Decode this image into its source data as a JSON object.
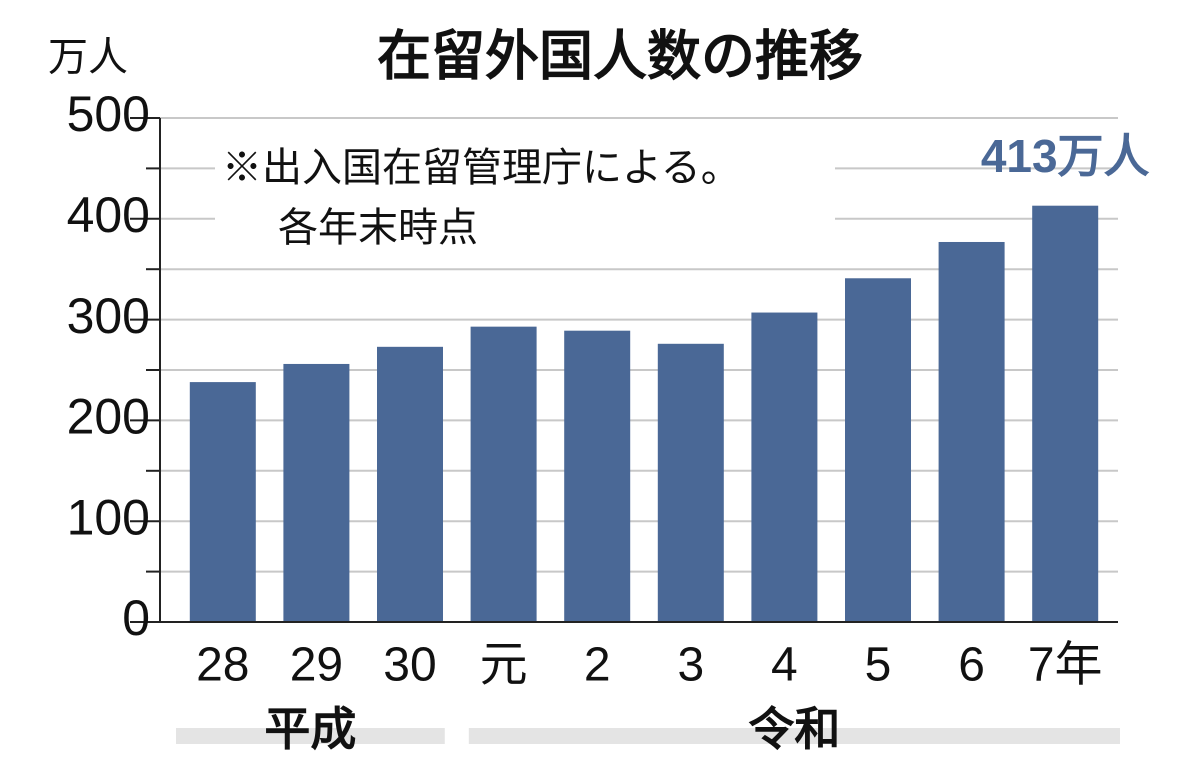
{
  "chart_data": {
    "type": "bar",
    "title": "在留外国人数の推移",
    "y_label": "万人",
    "annotation": [
      "※出入国在留管理庁による。",
      "各年末時点"
    ],
    "categories": [
      "28",
      "29",
      "30",
      "元",
      "2",
      "3",
      "4",
      "5",
      "6",
      "7年"
    ],
    "values": [
      238,
      256,
      273,
      293,
      289,
      276,
      307,
      341,
      377,
      413
    ],
    "value_labels": [
      null,
      null,
      null,
      null,
      null,
      null,
      null,
      null,
      null,
      "413万人"
    ],
    "groups": [
      {
        "label": "平成",
        "count": 3
      },
      {
        "label": "令和",
        "count": 7
      }
    ],
    "color": "#4a6896",
    "ylim": [
      0,
      500
    ],
    "yticks": [
      0,
      100,
      200,
      300,
      400,
      500
    ],
    "y_minor_ticks": [
      50,
      150,
      250,
      350,
      450
    ],
    "grid": true
  }
}
